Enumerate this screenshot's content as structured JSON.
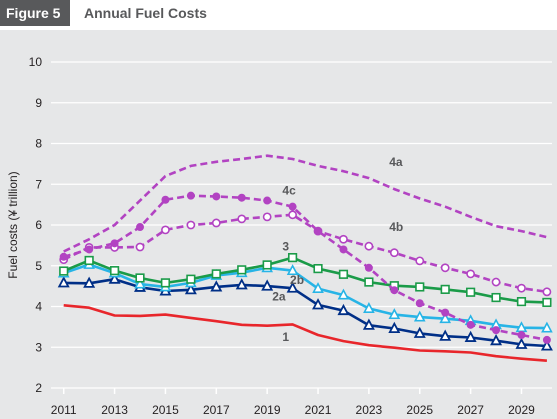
{
  "header": {
    "figure_label": "Figure 5",
    "title": "Annual Fuel Costs"
  },
  "chart_data": {
    "type": "line",
    "title": "Annual Fuel Costs",
    "xlabel": "",
    "ylabel": "Fuel costs (¥ trillion)",
    "ylim": [
      2,
      10
    ],
    "xlim": [
      2010.5,
      2030.2
    ],
    "y_ticks": [
      2,
      3,
      4,
      5,
      6,
      7,
      8,
      9,
      10
    ],
    "x_ticks": [
      2011,
      2013,
      2015,
      2017,
      2019,
      2021,
      2023,
      2025,
      2027,
      2029
    ],
    "grid": "horizontal",
    "series": [
      {
        "name": "1",
        "color": "#e8262b",
        "style": "solid",
        "marker": "none",
        "label_at": [
          2019.6,
          3.15
        ],
        "x": [
          2011,
          2012,
          2013,
          2014,
          2015,
          2016,
          2017,
          2018,
          2019,
          2020,
          2021,
          2022,
          2023,
          2024,
          2025,
          2026,
          2027,
          2028,
          2029,
          2030
        ],
        "y": [
          4.03,
          3.97,
          3.78,
          3.77,
          3.8,
          3.72,
          3.64,
          3.55,
          3.53,
          3.56,
          3.3,
          3.15,
          3.05,
          2.99,
          2.92,
          2.9,
          2.87,
          2.78,
          2.72,
          2.67
        ]
      },
      {
        "name": "2a",
        "color": "#002f87",
        "style": "solid",
        "marker": "triangle-filled",
        "label_at": [
          2019.2,
          4.15
        ],
        "x": [
          2011,
          2012,
          2013,
          2014,
          2015,
          2016,
          2017,
          2018,
          2019,
          2020,
          2021,
          2022,
          2023,
          2024,
          2025,
          2026,
          2027,
          2028,
          2029,
          2030
        ],
        "y": [
          4.58,
          4.57,
          4.67,
          4.47,
          4.38,
          4.41,
          4.48,
          4.53,
          4.5,
          4.45,
          4.04,
          3.9,
          3.54,
          3.46,
          3.34,
          3.27,
          3.24,
          3.16,
          3.07,
          3.03
        ]
      },
      {
        "name": "2b",
        "color": "#27b4e6",
        "style": "solid",
        "marker": "triangle-open",
        "label_at": [
          2019.9,
          4.55
        ],
        "x": [
          2011,
          2012,
          2013,
          2014,
          2015,
          2016,
          2017,
          2018,
          2019,
          2020,
          2021,
          2022,
          2023,
          2024,
          2025,
          2026,
          2027,
          2028,
          2029,
          2030
        ],
        "y": [
          4.82,
          5.03,
          4.82,
          4.55,
          4.48,
          4.58,
          4.76,
          4.83,
          4.95,
          4.88,
          4.44,
          4.28,
          3.95,
          3.8,
          3.74,
          3.7,
          3.65,
          3.55,
          3.48,
          3.47
        ]
      },
      {
        "name": "3",
        "color": "#1a9b48",
        "style": "solid",
        "marker": "square-open",
        "label_at": [
          2019.6,
          5.38
        ],
        "x": [
          2011,
          2012,
          2013,
          2014,
          2015,
          2016,
          2017,
          2018,
          2019,
          2020,
          2021,
          2022,
          2023,
          2024,
          2025,
          2026,
          2027,
          2028,
          2029,
          2030
        ],
        "y": [
          4.87,
          5.13,
          4.88,
          4.7,
          4.58,
          4.67,
          4.8,
          4.9,
          5.02,
          5.2,
          4.93,
          4.79,
          4.6,
          4.51,
          4.48,
          4.42,
          4.35,
          4.22,
          4.12,
          4.1
        ]
      },
      {
        "name": "4a",
        "color": "#b243c2",
        "style": "dashed",
        "marker": "none",
        "label_at": [
          2023.8,
          7.45
        ],
        "x": [
          2011,
          2012,
          2013,
          2014,
          2015,
          2016,
          2017,
          2018,
          2019,
          2020,
          2021,
          2022,
          2023,
          2024,
          2025,
          2026,
          2027,
          2028,
          2029,
          2030
        ],
        "y": [
          5.35,
          5.65,
          6.0,
          6.6,
          7.2,
          7.45,
          7.55,
          7.62,
          7.7,
          7.62,
          7.45,
          7.32,
          7.15,
          6.88,
          6.65,
          6.45,
          6.2,
          5.97,
          5.85,
          5.7
        ]
      },
      {
        "name": "4b",
        "color": "#b243c2",
        "style": "dashed",
        "marker": "circle-open",
        "label_at": [
          2023.8,
          5.85
        ],
        "x": [
          2011,
          2012,
          2013,
          2014,
          2015,
          2016,
          2017,
          2018,
          2019,
          2020,
          2021,
          2022,
          2023,
          2024,
          2025,
          2026,
          2027,
          2028,
          2029,
          2030
        ],
        "y": [
          5.15,
          5.45,
          5.45,
          5.46,
          5.88,
          6.0,
          6.05,
          6.15,
          6.2,
          6.25,
          5.85,
          5.65,
          5.48,
          5.32,
          5.12,
          4.95,
          4.8,
          4.6,
          4.45,
          4.36
        ]
      },
      {
        "name": "4c",
        "color": "#b243c2",
        "style": "dashed",
        "marker": "circle-filled",
        "label_at": [
          2019.6,
          6.75
        ],
        "x": [
          2011,
          2012,
          2013,
          2014,
          2015,
          2016,
          2017,
          2018,
          2019,
          2020,
          2021,
          2022,
          2023,
          2024,
          2025,
          2026,
          2027,
          2028,
          2029,
          2030
        ],
        "y": [
          5.22,
          5.4,
          5.55,
          5.95,
          6.62,
          6.72,
          6.7,
          6.67,
          6.6,
          6.45,
          5.85,
          5.4,
          4.95,
          4.4,
          4.08,
          3.85,
          3.55,
          3.42,
          3.3,
          3.18
        ]
      }
    ]
  }
}
